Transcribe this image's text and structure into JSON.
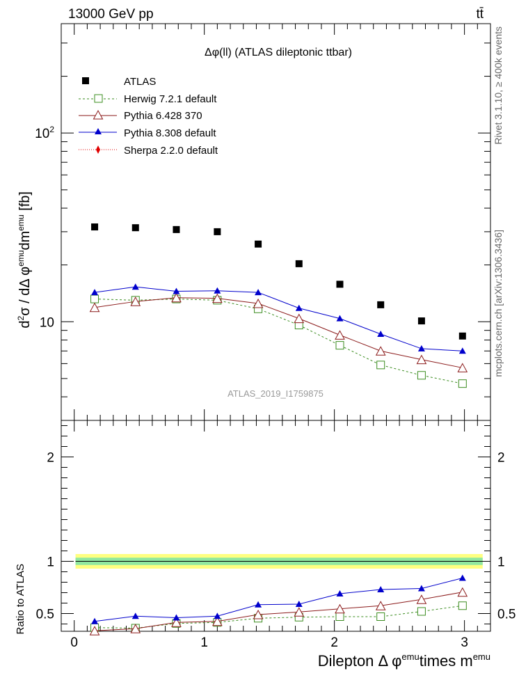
{
  "header": {
    "left": "13000 GeV pp",
    "right": "tt̄"
  },
  "side": {
    "top": "Rivet 3.1.10, ≥ 400k events",
    "bottom": "mcplots.cern.ch [arXiv:1306.3436]"
  },
  "chart_data": [
    {
      "type": "scatter",
      "title": "Δφ(ll) (ATLAS dileptonic ttbar)",
      "watermark": "ATLAS_2019_I1759875",
      "xlabel": "Dilepton Δ φ^emu times m^emu",
      "ylabel": "d²σ / dΔ φ^emu dm^emu [fb]",
      "yscale": "log",
      "xlim": [
        -0.1,
        3.2
      ],
      "ylim": [
        3,
        380
      ],
      "y_ticklabels": [
        "10",
        "10²"
      ],
      "x": [
        0.157,
        0.471,
        0.785,
        1.1,
        1.414,
        1.728,
        2.042,
        2.356,
        2.67,
        2.985
      ],
      "series": [
        {
          "name": "ATLAS",
          "color": "#000000",
          "marker": "square-filled",
          "values": [
            31.8,
            31.5,
            30.8,
            30.0,
            25.8,
            20.3,
            15.8,
            12.3,
            10.1,
            8.4
          ]
        },
        {
          "name": "Herwig 7.2.1 default",
          "color": "#3a8c1e",
          "marker": "square-open",
          "dash": "3,3",
          "values": [
            13.2,
            13.0,
            13.2,
            13.0,
            11.7,
            9.6,
            7.5,
            5.9,
            5.2,
            4.7
          ]
        },
        {
          "name": "Pythia 6.428 370",
          "color": "#8b1a1a",
          "marker": "triangle-open",
          "values": [
            11.9,
            12.8,
            13.4,
            13.3,
            12.5,
            10.4,
            8.5,
            7.0,
            6.3,
            5.7
          ]
        },
        {
          "name": "Pythia 8.308 default",
          "color": "#0000cc",
          "marker": "triangle-filled",
          "values": [
            14.3,
            15.3,
            14.5,
            14.6,
            14.3,
            11.8,
            10.4,
            8.6,
            7.2,
            7.0
          ]
        },
        {
          "name": "Sherpa 2.2.0 default",
          "color": "#e00000",
          "marker": "diamond-filled",
          "dash": "1,2",
          "values": []
        }
      ]
    },
    {
      "type": "scatter",
      "ylabel": "Ratio to ATLAS",
      "xlabel": "Dilepton Δ φ^emu times m^emu",
      "ylim": [
        0.33,
        2.35
      ],
      "xlim": [
        -0.1,
        3.2
      ],
      "y_ticklabels": [
        "0.5",
        "1",
        "2"
      ],
      "x_ticklabels": [
        "0",
        "1",
        "2",
        "3"
      ],
      "x": [
        0.157,
        0.471,
        0.785,
        1.1,
        1.414,
        1.728,
        2.042,
        2.356,
        2.67,
        2.985
      ],
      "series": [
        {
          "name": "Herwig 7.2.1 default",
          "color": "#3a8c1e",
          "marker": "square-open",
          "dash": "3,3",
          "values": [
            0.365,
            0.36,
            0.405,
            0.415,
            0.455,
            0.465,
            0.47,
            0.47,
            0.52,
            0.575
          ]
        },
        {
          "name": "Pythia 6.428 370",
          "color": "#8b1a1a",
          "marker": "triangle-open",
          "values": [
            0.33,
            0.355,
            0.415,
            0.425,
            0.49,
            0.515,
            0.545,
            0.575,
            0.635,
            0.705
          ]
        },
        {
          "name": "Pythia 8.308 default",
          "color": "#0000cc",
          "marker": "triangle-filled",
          "values": [
            0.425,
            0.475,
            0.46,
            0.475,
            0.585,
            0.59,
            0.69,
            0.73,
            0.74,
            0.84
          ]
        }
      ]
    }
  ]
}
